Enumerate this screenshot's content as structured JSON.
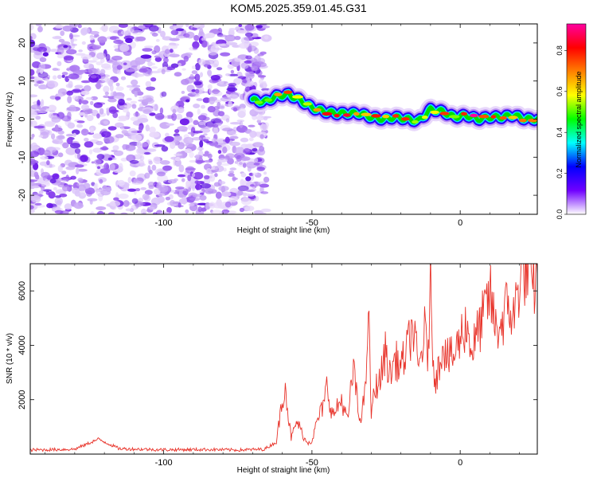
{
  "page": {
    "title": "KOM5.2025.359.01.45.G31"
  },
  "chart_data": [
    {
      "type": "heatmap",
      "title": "KOM5.2025.359.01.45.G31",
      "xlabel": "Height of straight line (km)",
      "ylabel": "Frequency (Hz)",
      "xlim": [
        -145,
        26
      ],
      "ylim": [
        -25,
        25
      ],
      "x_ticks": [
        -100,
        -50,
        0
      ],
      "x_tick_labels": [
        "-100",
        "-50",
        "0"
      ],
      "y_ticks": [
        -20,
        -10,
        0,
        10,
        20
      ],
      "y_tick_labels": [
        "-20",
        "-10",
        "0",
        "10",
        "20"
      ],
      "colorbar": {
        "label": "Normalized spectral amplitude",
        "range": [
          0,
          0.93
        ],
        "ticks": [
          0,
          0.2,
          0.4,
          0.6,
          0.8
        ],
        "tick_labels": [
          "0.0",
          "0.2",
          "0.4",
          "0.6",
          "0.8"
        ],
        "colors": [
          "#ffffff",
          "#7000ff",
          "#0000ff",
          "#00ffff",
          "#00ff00",
          "#ffff00",
          "#ff8000",
          "#ff0000",
          "#ff00a0"
        ]
      },
      "noise_region_x": [
        -145,
        -68
      ],
      "ridge": {
        "x": [
          -70,
          -66,
          -62,
          -58,
          -54,
          -50,
          -46,
          -42,
          -38,
          -34,
          -30,
          -26,
          -22,
          -18,
          -14,
          -10,
          -6,
          -2,
          2,
          6,
          10,
          14,
          18,
          22,
          26
        ],
        "y": [
          5,
          4.5,
          6,
          6.5,
          5,
          3,
          2,
          1.5,
          1.5,
          1.5,
          0.5,
          0,
          0.5,
          0,
          -0.5,
          2.5,
          2,
          0.5,
          1,
          0,
          0.5,
          0.5,
          1,
          0,
          0
        ],
        "amplitude": [
          0.35,
          0.45,
          0.6,
          0.8,
          0.55,
          0.5,
          0.65,
          0.85,
          0.7,
          0.5,
          0.75,
          0.55,
          0.6,
          0.7,
          0.5,
          0.6,
          0.65,
          0.55,
          0.8,
          0.85,
          0.6,
          0.75,
          0.7,
          0.65,
          0.6
        ]
      }
    },
    {
      "type": "line",
      "xlabel": "Height of straight line (km)",
      "ylabel": "SNR (10 * v/v)",
      "xlim": [
        -145,
        26
      ],
      "ylim": [
        0,
        7000
      ],
      "x_ticks": [
        -100,
        -50,
        0
      ],
      "x_tick_labels": [
        "-100",
        "-50",
        "0"
      ],
      "y_ticks": [
        2000,
        4000,
        6000
      ],
      "y_tick_labels": [
        "2000",
        "4000",
        "6000"
      ],
      "series": [
        {
          "color": "#e8332a",
          "x": [
            -145,
            -130,
            -122,
            -115,
            -100,
            -85,
            -75,
            -66,
            -62,
            -60,
            -59,
            -58,
            -57,
            -55,
            -52,
            -50,
            -48,
            -46,
            -45,
            -43,
            -40,
            -38,
            -36,
            -34,
            -32,
            -31,
            -30,
            -29,
            -28,
            -27,
            -25,
            -24,
            -22,
            -20,
            -18,
            -16,
            -14,
            -12,
            -11,
            -10,
            -9,
            -8,
            -6,
            -4,
            -2,
            0,
            2,
            4,
            6,
            8,
            10,
            12,
            14,
            16,
            18,
            20,
            22,
            24,
            26
          ],
          "y": [
            150,
            180,
            550,
            200,
            160,
            170,
            150,
            180,
            450,
            2000,
            2650,
            1400,
            600,
            1200,
            450,
            500,
            1300,
            1800,
            2500,
            1400,
            2000,
            1200,
            3200,
            1200,
            2200,
            5400,
            1500,
            2200,
            2600,
            2700,
            3900,
            2800,
            3500,
            3200,
            3800,
            4700,
            3100,
            4500,
            3600,
            6100,
            3300,
            2700,
            4100,
            3500,
            3600,
            4300,
            4800,
            3800,
            4500,
            5100,
            5900,
            4600,
            4800,
            5500,
            5000,
            6400,
            6900,
            6000,
            6600
          ]
        }
      ]
    }
  ]
}
